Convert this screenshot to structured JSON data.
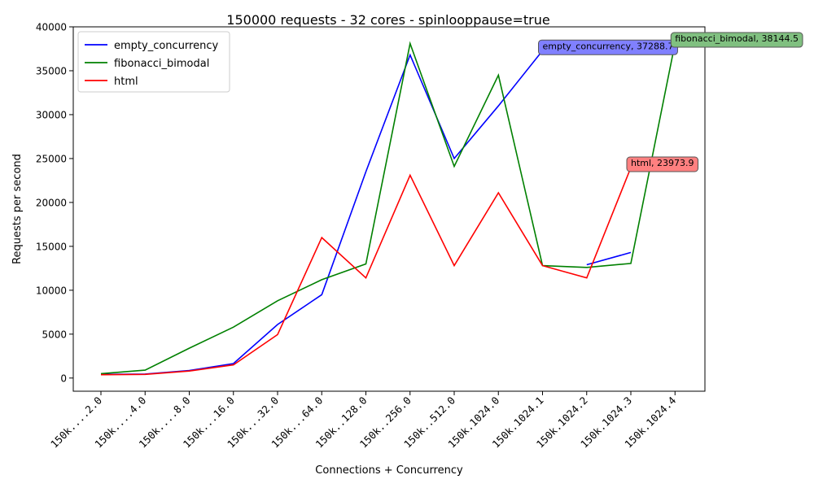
{
  "chart_data": {
    "type": "line",
    "title": "150000 requests - 32 cores - spinlooppause=true",
    "xlabel": "Connections + Concurrency",
    "ylabel": "Requests per second",
    "ylim": [
      -1500,
      40000
    ],
    "yticks": [
      0,
      5000,
      10000,
      15000,
      20000,
      25000,
      30000,
      35000,
      40000
    ],
    "legend": "top-left",
    "grid": false,
    "categories": [
      "150k....2.0",
      "150k....4.0",
      "150k....8.0",
      "150k...16.0",
      "150k...32.0",
      "150k...64.0",
      "150k..128.0",
      "150k..256.0",
      "150k..512.0",
      "150k.1024.0",
      "150k.1024.1",
      "150k.1024.2",
      "150k.1024.3",
      "150k.1024.4"
    ],
    "series": [
      {
        "name": "empty_concurrency",
        "color": "#0000ff",
        "values": [
          420,
          450,
          850,
          1650,
          6100,
          9500,
          23500,
          36800,
          25000,
          31000,
          37288.7,
          null,
          null,
          null
        ],
        "values_2": [
          null,
          null,
          null,
          null,
          null,
          null,
          null,
          null,
          null,
          null,
          null,
          12900,
          14300,
          null
        ],
        "annotation": {
          "index": 10,
          "value": 37288.7,
          "label": "empty_concurrency, 37288.7",
          "bg": "#8080ff"
        }
      },
      {
        "name": "fibonacci_bimodal",
        "color": "#008000",
        "values": [
          500,
          900,
          3400,
          5800,
          8800,
          11200,
          13000,
          38100,
          24100,
          34500,
          12800,
          12600,
          13050,
          38144.5
        ],
        "annotation": {
          "index": 13,
          "value": 38144.5,
          "label": "fibonacci_bimodal, 38144.5",
          "bg": "#80c080"
        }
      },
      {
        "name": "html",
        "color": "#ff0000",
        "values": [
          380,
          420,
          800,
          1500,
          4950,
          16000,
          11400,
          23100,
          12800,
          21100,
          12800,
          11400,
          23973.9,
          null
        ],
        "annotation": {
          "index": 12,
          "value": 23973.9,
          "label": "html, 23973.9",
          "bg": "#ff8080"
        }
      }
    ]
  }
}
